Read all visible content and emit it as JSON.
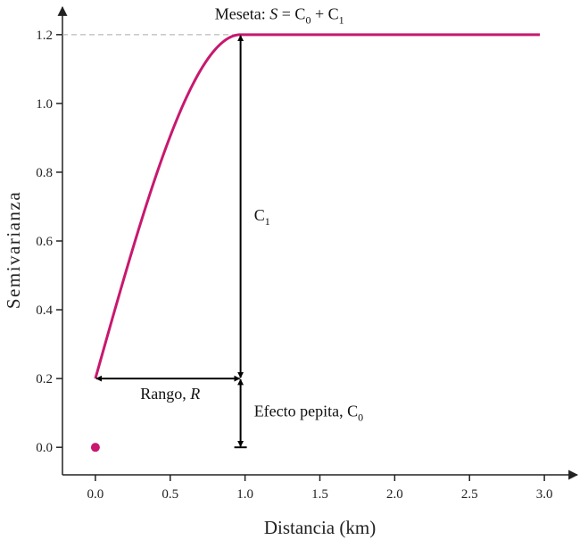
{
  "chart_data": {
    "type": "line",
    "title": "",
    "xlabel": "Distancia (km)",
    "ylabel": "Semivarianza",
    "xlim": [
      -0.22,
      3.22
    ],
    "ylim": [
      -0.08,
      1.28
    ],
    "xticks": [
      0.0,
      0.5,
      1.0,
      1.5,
      2.0,
      2.5,
      3.0
    ],
    "xtick_labels": [
      "0.0",
      "0.5",
      "1.0",
      "1.5",
      "2.0",
      "2.5",
      "3.0"
    ],
    "yticks": [
      0.0,
      0.2,
      0.4,
      0.6,
      0.8,
      1.0,
      1.2
    ],
    "ytick_labels": [
      "0.0",
      "0.2",
      "0.4",
      "0.6",
      "0.8",
      "1.0",
      "1.2"
    ],
    "grid": false,
    "model": {
      "name": "spherical",
      "nugget": 0.2,
      "partial_sill": 1.0,
      "sill": 1.2,
      "range": 0.97,
      "x_max": 2.97
    },
    "origin_point": {
      "x": 0.0,
      "y": 0.0
    },
    "colors": {
      "curve": "#c8186e",
      "axis": "#222222",
      "arrow": "#000000",
      "sill_line": "#aaaaaa"
    },
    "annotations": {
      "sill_prefix": "Meseta: ",
      "sill_symbol": "S",
      "sill_equals": " = C",
      "sill_sub0": "0",
      "sill_plus": " + C",
      "sill_sub1": "1",
      "partial_sill_main": "C",
      "partial_sill_sub": "1",
      "range_main": "Rango, ",
      "range_symbol": "R",
      "nugget_main": "Efecto pepita, C",
      "nugget_sub": "0"
    }
  }
}
